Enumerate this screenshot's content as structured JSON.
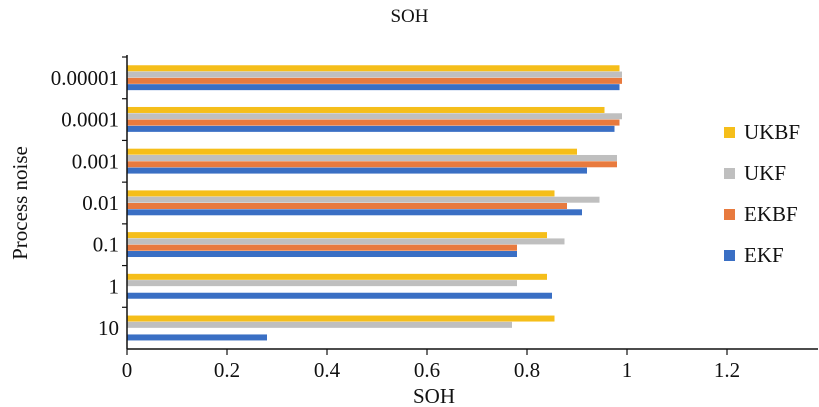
{
  "chart_data": {
    "type": "bar",
    "orientation": "horizontal",
    "title": "SOH",
    "xlabel": "SOH",
    "ylabel": "Process noise",
    "xlim": [
      0,
      1.4
    ],
    "xticks": [
      "0",
      "0.2",
      "0.4",
      "0.6",
      "0.8",
      "1",
      "1.2"
    ],
    "categories": [
      "0.00001",
      "0.0001",
      "0.001",
      "0.01",
      "0.1",
      "1",
      "10"
    ],
    "series": [
      {
        "name": "UKBF",
        "color": "#F5BE1A",
        "values": [
          0.985,
          0.955,
          0.9,
          0.855,
          0.84,
          0.84,
          0.855
        ]
      },
      {
        "name": "UKF",
        "color": "#BFBFBF",
        "values": [
          0.99,
          0.99,
          0.98,
          0.945,
          0.875,
          0.78,
          0.77
        ]
      },
      {
        "name": "EKBF",
        "color": "#E87A3E",
        "values": [
          0.99,
          0.985,
          0.98,
          0.88,
          0.78,
          0.0,
          0.0
        ]
      },
      {
        "name": "EKF",
        "color": "#3A6FC4",
        "values": [
          0.985,
          0.975,
          0.92,
          0.91,
          0.78,
          0.85,
          0.28
        ]
      }
    ],
    "grid": false,
    "legend_position": "right"
  }
}
